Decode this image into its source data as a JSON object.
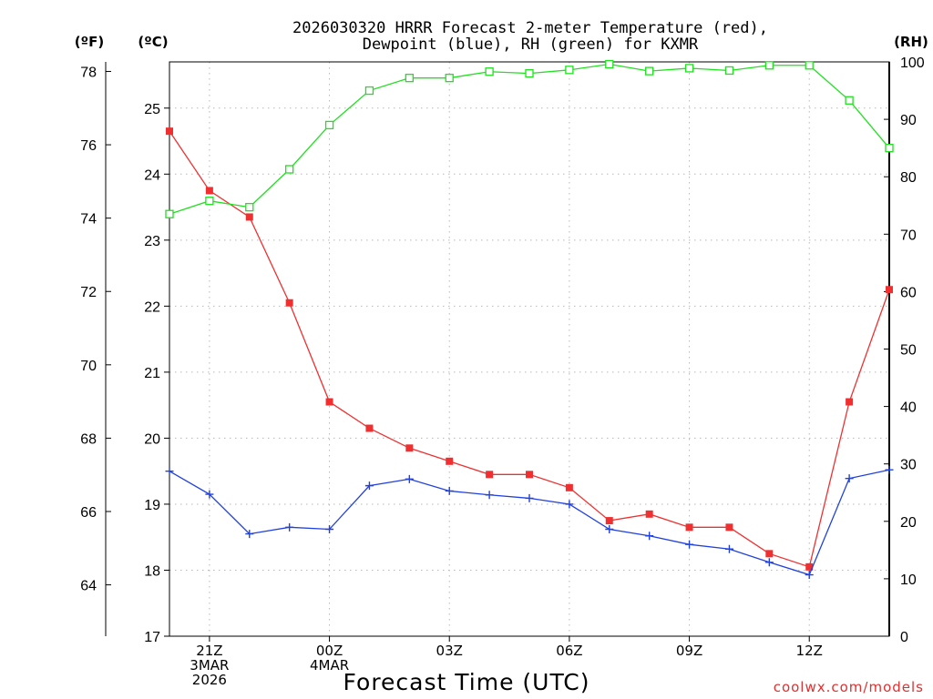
{
  "chart_data": {
    "type": "line",
    "title_line1": "2026030320 HRRR Forecast 2-meter Temperature (red),",
    "title_line2": "Dewpoint (blue), RH (green) for KXMR",
    "xlabel": "Forecast Time (UTC)",
    "unit_f": "(ºF)",
    "unit_c": "(ºC)",
    "unit_rh": "(RH)",
    "watermark": "coolwx.com/models",
    "ylim_c": [
      17,
      25.7
    ],
    "ylim_rh": [
      0,
      100
    ],
    "celsius_ticks": [
      "17",
      "18",
      "19",
      "20",
      "21",
      "22",
      "23",
      "24",
      "25"
    ],
    "fahrenheit_ticks": [
      "64",
      "66",
      "68",
      "70",
      "72",
      "74",
      "76",
      "78"
    ],
    "rh_ticks": [
      "0",
      "10",
      "20",
      "30",
      "40",
      "50",
      "60",
      "70",
      "80",
      "90",
      "100"
    ],
    "x_hours": [
      20,
      21,
      22,
      23,
      24,
      25,
      26,
      27,
      28,
      29,
      30,
      31,
      32,
      33,
      34,
      35,
      36,
      37,
      38
    ],
    "x_ticks": [
      {
        "hour": 21,
        "lines": [
          "21Z",
          "3MAR",
          "2026"
        ]
      },
      {
        "hour": 24,
        "lines": [
          "00Z",
          "4MAR"
        ]
      },
      {
        "hour": 27,
        "lines": [
          "03Z"
        ]
      },
      {
        "hour": 30,
        "lines": [
          "06Z"
        ]
      },
      {
        "hour": 33,
        "lines": [
          "09Z"
        ]
      },
      {
        "hour": 36,
        "lines": [
          "12Z"
        ]
      }
    ],
    "series": [
      {
        "name": "Temperature",
        "units": "C",
        "color": "#f03030",
        "marker": "filled-square",
        "values": [
          24.65,
          23.75,
          23.35,
          22.05,
          20.55,
          20.15,
          19.85,
          19.65,
          19.45,
          19.45,
          19.25,
          18.75,
          18.85,
          18.65,
          18.65,
          18.25,
          18.05,
          20.55,
          22.25
        ]
      },
      {
        "name": "Dewpoint",
        "units": "C",
        "color": "#2040e0",
        "marker": "plus",
        "values": [
          19.5,
          19.15,
          18.55,
          18.65,
          18.62,
          19.28,
          19.38,
          19.2,
          19.14,
          19.09,
          19.0,
          18.62,
          18.52,
          18.39,
          18.32,
          18.12,
          17.93,
          19.39,
          19.52
        ]
      },
      {
        "name": "RH",
        "units": "%",
        "color": "#20e020",
        "marker": "open-square",
        "values": [
          73.5,
          75.8,
          74.7,
          81.3,
          89,
          95,
          97.2,
          97.2,
          98.3,
          98,
          98.6,
          99.6,
          98.4,
          98.9,
          98.5,
          99.4,
          99.4,
          93.3,
          85
        ]
      }
    ]
  }
}
